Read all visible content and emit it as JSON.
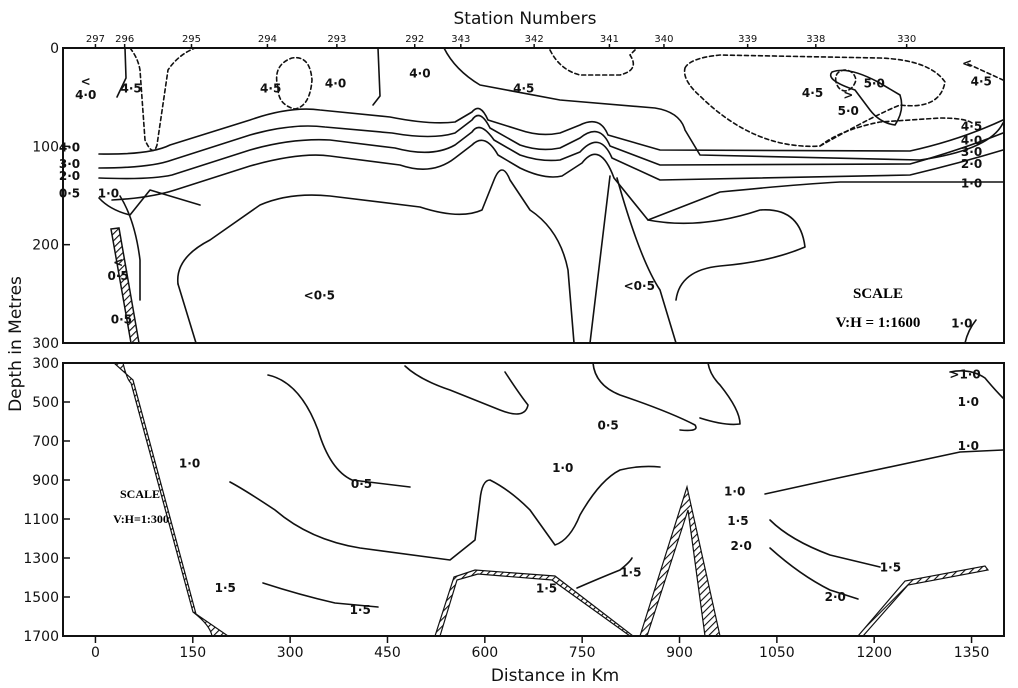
{
  "chart_data": {
    "type": "contour",
    "title": "Station Numbers",
    "xlabel": "Distance in Km",
    "ylabel": "Depth in Metres",
    "xlim": [
      -50,
      1400
    ],
    "xticks": [
      0,
      150,
      300,
      450,
      600,
      750,
      900,
      1050,
      1200,
      1350
    ],
    "stations": [
      {
        "label": "297",
        "x": 0
      },
      {
        "label": "296",
        "x": 45
      },
      {
        "label": "295",
        "x": 148
      },
      {
        "label": "294",
        "x": 265
      },
      {
        "label": "293",
        "x": 372
      },
      {
        "label": "292",
        "x": 492
      },
      {
        "label": "343",
        "x": 563
      },
      {
        "label": "342",
        "x": 676
      },
      {
        "label": "341",
        "x": 792
      },
      {
        "label": "340",
        "x": 876
      },
      {
        "label": "339",
        "x": 1005
      },
      {
        "label": "338",
        "x": 1110
      },
      {
        "label": "330",
        "x": 1250
      }
    ],
    "panels": [
      {
        "id": "upper",
        "ylim": [
          0,
          300
        ],
        "yticks": [
          "0",
          "100",
          "200",
          "300"
        ],
        "scale_title": "SCALE",
        "scale_ratio": "V:H = 1:1600",
        "labels": [
          {
            "text": "<",
            "x": -15,
            "y": 38
          },
          {
            "text": "4·0",
            "x": -15,
            "y": 52
          },
          {
            "text": "4·5",
            "x": 55,
            "y": 45
          },
          {
            "text": "4·5",
            "x": 270,
            "y": 45
          },
          {
            "text": "4·0",
            "x": 370,
            "y": 40
          },
          {
            "text": "4·0",
            "x": 500,
            "y": 30
          },
          {
            "text": "4·5",
            "x": 660,
            "y": 45
          },
          {
            "text": "4·5",
            "x": 1105,
            "y": 50
          },
          {
            "text": "5·0",
            "x": 1200,
            "y": 40
          },
          {
            "text": ">",
            "x": 1160,
            "y": 52
          },
          {
            "text": "5·0",
            "x": 1160,
            "y": 68
          },
          {
            "text": "<",
            "x": 1343,
            "y": 20
          },
          {
            "text": "4·5",
            "x": 1365,
            "y": 38
          },
          {
            "text": "4·5",
            "x": 1350,
            "y": 84
          },
          {
            "text": "4·0",
            "x": 1350,
            "y": 98
          },
          {
            "text": "3·0",
            "x": 1350,
            "y": 110
          },
          {
            "text": "2·0",
            "x": 1350,
            "y": 122
          },
          {
            "text": "1·0",
            "x": 1350,
            "y": 142
          },
          {
            "text": "4·0",
            "x": -40,
            "y": 105
          },
          {
            "text": "3·0",
            "x": -40,
            "y": 122
          },
          {
            "text": "2·0",
            "x": -40,
            "y": 134
          },
          {
            "text": "0·5",
            "x": -40,
            "y": 152
          },
          {
            "text": "1·0",
            "x": 20,
            "y": 152
          },
          {
            "text": "<",
            "x": 35,
            "y": 222
          },
          {
            "text": "0·5",
            "x": 35,
            "y": 236
          },
          {
            "text": "0·5",
            "x": 40,
            "y": 280
          },
          {
            "text": "<0·5",
            "x": 345,
            "y": 256
          },
          {
            "text": "<0·5",
            "x": 838,
            "y": 246
          },
          {
            "text": "1·0",
            "x": 1335,
            "y": 284
          }
        ]
      },
      {
        "id": "lower",
        "ylim": [
          300,
          1700
        ],
        "yticks": [
          "300",
          "500",
          "700",
          "900",
          "1100",
          "1300",
          "1500",
          "1700"
        ],
        "scale_title": "SCALE",
        "scale_ratio": "V:H=1:300",
        "labels": [
          {
            "text": ">1·0",
            "x": 1340,
            "y": 380
          },
          {
            "text": "1·0",
            "x": 1345,
            "y": 520
          },
          {
            "text": "0·5",
            "x": 790,
            "y": 640
          },
          {
            "text": "1·0",
            "x": 1345,
            "y": 745
          },
          {
            "text": "1·0",
            "x": 145,
            "y": 835
          },
          {
            "text": "0·5",
            "x": 410,
            "y": 940
          },
          {
            "text": "1·0",
            "x": 720,
            "y": 860
          },
          {
            "text": "1·0",
            "x": 985,
            "y": 980
          },
          {
            "text": "1·5",
            "x": 990,
            "y": 1130
          },
          {
            "text": "2·0",
            "x": 995,
            "y": 1260
          },
          {
            "text": "1·5",
            "x": 1225,
            "y": 1370
          },
          {
            "text": "2·0",
            "x": 1140,
            "y": 1520
          },
          {
            "text": "1·5",
            "x": 200,
            "y": 1475
          },
          {
            "text": "1·5",
            "x": 408,
            "y": 1588
          },
          {
            "text": "1·5",
            "x": 695,
            "y": 1478
          },
          {
            "text": "1·5",
            "x": 825,
            "y": 1395
          }
        ]
      }
    ]
  }
}
